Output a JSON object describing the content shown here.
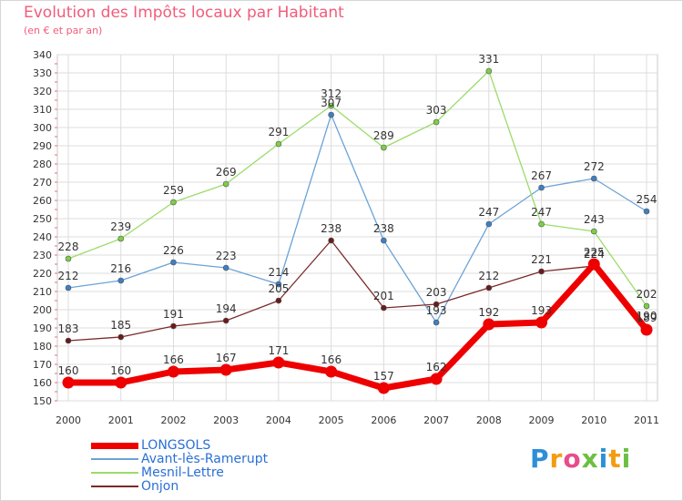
{
  "title": "Evolution des Impôts locaux par Habitant",
  "subtitle": "(en € et par an)",
  "brand": {
    "name": "Proxiti",
    "letters": [
      {
        "char": "P",
        "color": "#2e8fd6"
      },
      {
        "char": "r",
        "color": "#f39c12"
      },
      {
        "char": "o",
        "color": "#e84c8b"
      },
      {
        "char": "x",
        "color": "#6cbf3f"
      },
      {
        "char": "i",
        "color": "#2e8fd6"
      },
      {
        "char": "t",
        "color": "#f39c12"
      },
      {
        "char": "i",
        "color": "#6cbf3f"
      }
    ]
  },
  "chart_data": {
    "type": "line",
    "title": "Evolution des Impôts locaux par Habitant",
    "subtitle": "(en € et par an)",
    "xlabel": "",
    "ylabel": "",
    "ylim": [
      150,
      340
    ],
    "ytick_step": 10,
    "grid": true,
    "categories": [
      "2000",
      "2001",
      "2002",
      "2003",
      "2004",
      "2005",
      "2006",
      "2007",
      "2008",
      "2009",
      "2010",
      "2011"
    ],
    "series": [
      {
        "name": "LONGSOLS",
        "color": "#ee0000",
        "marker": "#ee0000",
        "emphasis": true,
        "values": [
          160,
          160,
          166,
          167,
          171,
          166,
          157,
          162,
          192,
          193,
          225,
          189
        ],
        "labels": [
          "160",
          "160",
          "166",
          "167",
          "171",
          "166",
          "157",
          "162",
          "192",
          "193",
          "225",
          "189"
        ]
      },
      {
        "name": "Avant-lès-Ramerupt",
        "color": "#6ba3d6",
        "marker": "#3d7fc4",
        "emphasis": false,
        "values": [
          212,
          216,
          226,
          223,
          214,
          307,
          238,
          193,
          247,
          267,
          272,
          254
        ],
        "labels": [
          "212",
          "216",
          "226",
          "223",
          "214",
          "307",
          "238",
          "193",
          "247",
          "267",
          "272",
          "254"
        ]
      },
      {
        "name": "Mesnil-Lettre",
        "color": "#9bdc6a",
        "marker": "#7ccf44",
        "emphasis": false,
        "values": [
          228,
          239,
          259,
          269,
          291,
          312,
          289,
          303,
          331,
          247,
          243,
          202
        ],
        "labels": [
          "228",
          "239",
          "259",
          "269",
          "291",
          "312",
          "289",
          "303",
          "331",
          "247",
          "243",
          "202"
        ]
      },
      {
        "name": "Onjon",
        "color": "#7a2a2a",
        "marker": "#6b1a1a",
        "emphasis": false,
        "values": [
          183,
          185,
          191,
          194,
          205,
          238,
          201,
          203,
          212,
          221,
          224,
          190
        ],
        "labels": [
          "183",
          "185",
          "191",
          "194",
          "205",
          "238",
          "201",
          "203",
          "212",
          "221",
          "224",
          "190"
        ]
      }
    ],
    "legend_position": "bottom-left"
  }
}
